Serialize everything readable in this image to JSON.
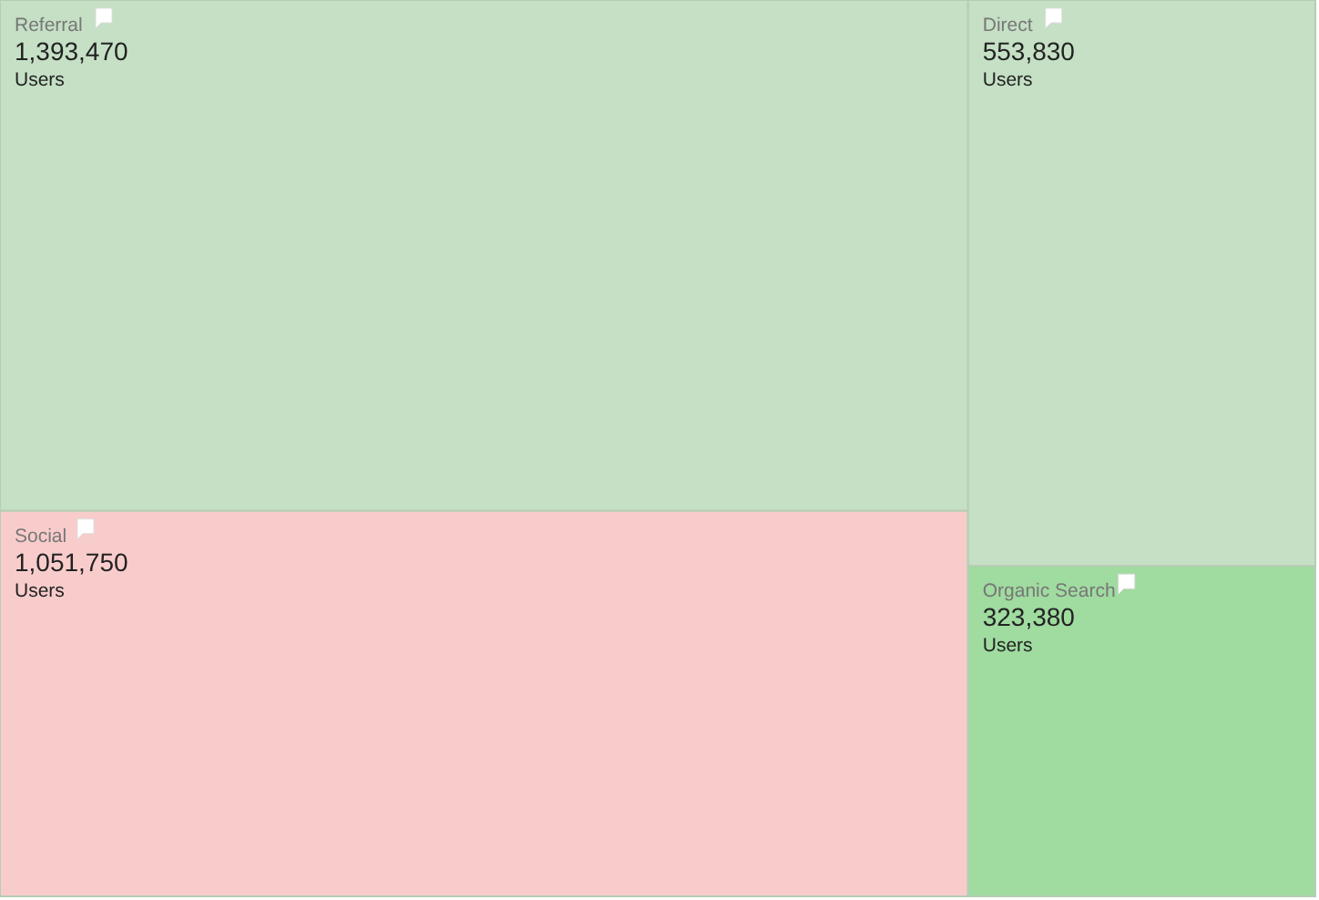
{
  "chart_data": {
    "type": "other",
    "categories": [
      "Referral",
      "Social",
      "Direct",
      "Organic Search"
    ],
    "values": [
      1393470,
      1051750,
      553830,
      323380
    ],
    "colors": [
      "#c5e0c5",
      "#f9cccc",
      "#c5e0c5",
      "#a0dba0"
    ],
    "ylabel": "Users",
    "value_labels": [
      "1,393,470",
      "1,051,750",
      "553,830",
      "323,380"
    ]
  }
}
